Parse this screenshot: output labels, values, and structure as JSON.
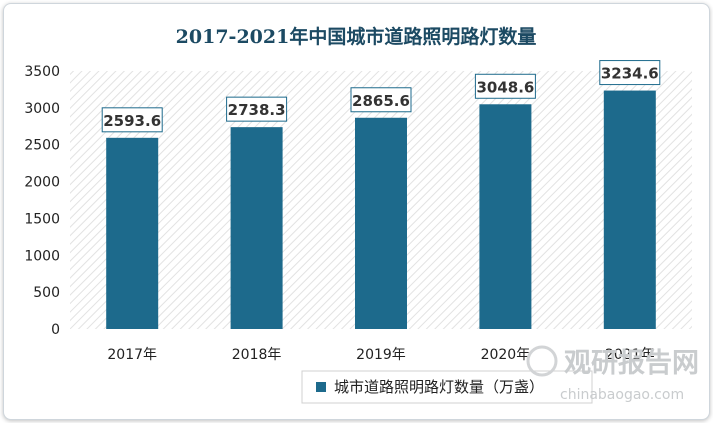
{
  "chart_data": {
    "type": "bar",
    "title": "2017-2021年中国城市道路照明路灯数量",
    "categories": [
      "2017年",
      "2018年",
      "2019年",
      "2020年",
      "2021年"
    ],
    "series": [
      {
        "name": "城市道路照明路灯数量（万盏）",
        "values": [
          2593.6,
          2738.3,
          2865.6,
          3048.6,
          3234.6
        ],
        "color": "#1d6a8c"
      }
    ],
    "ylim": [
      0,
      3500
    ],
    "yticks": [
      0,
      500,
      1000,
      1500,
      2000,
      2500,
      3000,
      3500
    ],
    "grid": false,
    "legend_position": "bottom",
    "plot_background": "diagonal-hatch"
  },
  "watermark": {
    "brand": "观研报告网",
    "url": "chinabaogao.com"
  },
  "colors": {
    "bar": "#1d6a8c",
    "title": "#1c4a63",
    "label_border": "#1d6a8c"
  }
}
